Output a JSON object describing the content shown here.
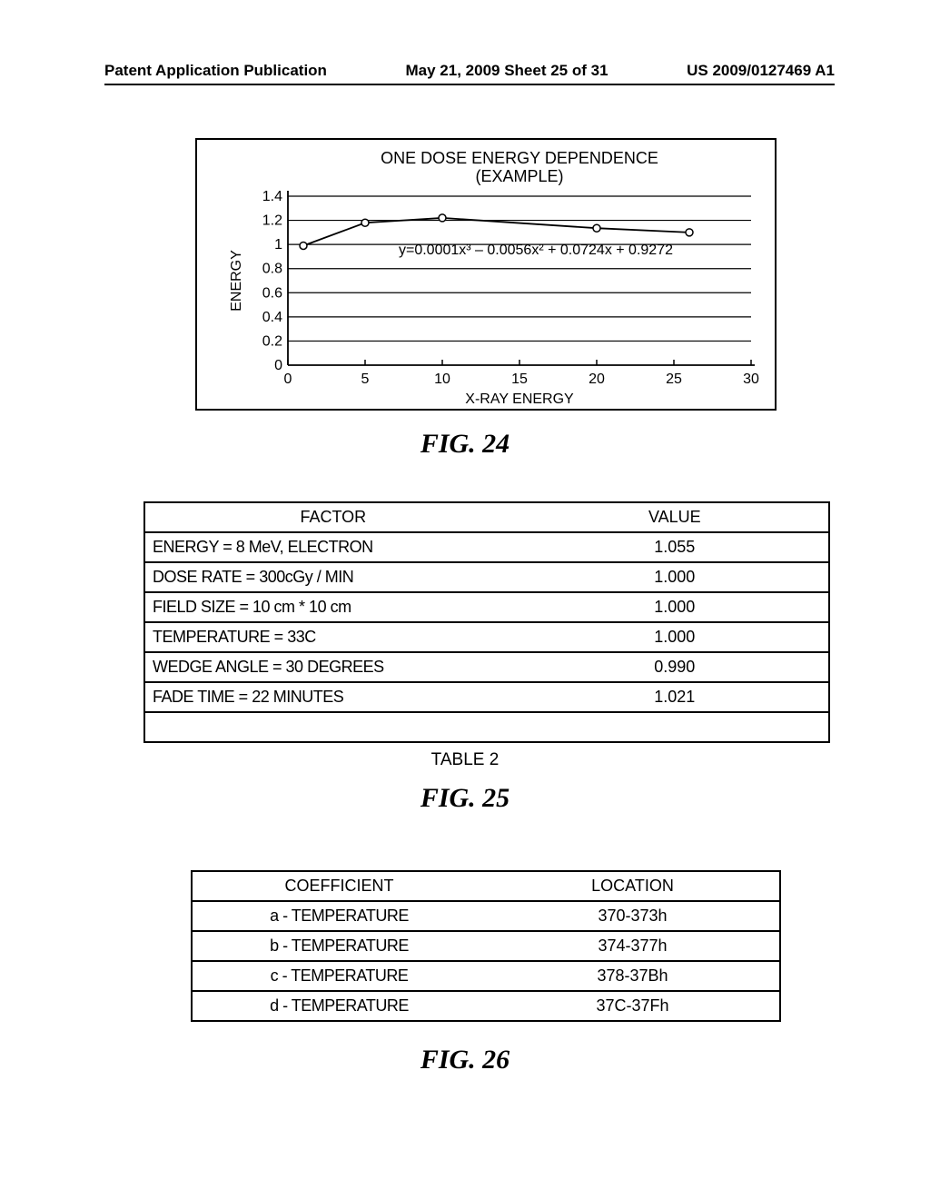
{
  "header": {
    "left": "Patent Application Publication",
    "center": "May 21, 2009  Sheet 25 of 31",
    "right": "US 2009/0127469 A1"
  },
  "chart": {
    "type": "line",
    "title_line1": "ONE DOSE ENERGY DEPENDENCE",
    "title_line2": "(EXAMPLE)",
    "ylabel": "ENERGY",
    "xlabel": "X-RAY ENERGY",
    "equation": "y=0.0001x³ – 0.0056x² + 0.0724x + 0.9272",
    "xlim": [
      0,
      30
    ],
    "ylim": [
      0,
      1.4
    ],
    "xtick_step": 5,
    "ytick_step": 0.2,
    "xticks": [
      "0",
      "5",
      "10",
      "15",
      "20",
      "25",
      "30"
    ],
    "yticks": [
      "0",
      "0.2",
      "0.4",
      "0.6",
      "0.8",
      "1",
      "1.2",
      "1.4"
    ],
    "data_points": [
      {
        "x": 1,
        "y": 0.99
      },
      {
        "x": 5,
        "y": 1.18
      },
      {
        "x": 10,
        "y": 1.22
      },
      {
        "x": 20,
        "y": 1.135
      },
      {
        "x": 26,
        "y": 1.1
      }
    ],
    "line_color": "#000000",
    "marker_color": "#ffffff",
    "marker_stroke": "#000000",
    "marker_size": 4,
    "background_color": "#ffffff",
    "grid_color": "#000000",
    "title_fontsize": 18,
    "tick_fontsize": 16,
    "label_fontsize": 16
  },
  "fig24_label": "FIG. 24",
  "table1": {
    "columns": [
      "FACTOR",
      "VALUE"
    ],
    "rows": [
      [
        "ENERGY = 8 MeV, ELECTRON",
        "1.055"
      ],
      [
        "DOSE RATE = 300cGy / MIN",
        "1.000"
      ],
      [
        "FIELD SIZE = 10 cm * 10 cm",
        "1.000"
      ],
      [
        "TEMPERATURE = 33C",
        "1.000"
      ],
      [
        "WEDGE ANGLE = 30 DEGREES",
        "0.990"
      ],
      [
        "FADE TIME = 22 MINUTES",
        "1.021"
      ]
    ]
  },
  "table1_caption": "TABLE 2",
  "fig25_label": "FIG. 25",
  "table2": {
    "columns": [
      "COEFFICIENT",
      "LOCATION"
    ],
    "rows": [
      [
        "a - TEMPERATURE",
        "370-373h"
      ],
      [
        "b - TEMPERATURE",
        "374-377h"
      ],
      [
        "c - TEMPERATURE",
        "378-37Bh"
      ],
      [
        "d - TEMPERATURE",
        "37C-37Fh"
      ]
    ]
  },
  "fig26_label": "FIG. 26"
}
